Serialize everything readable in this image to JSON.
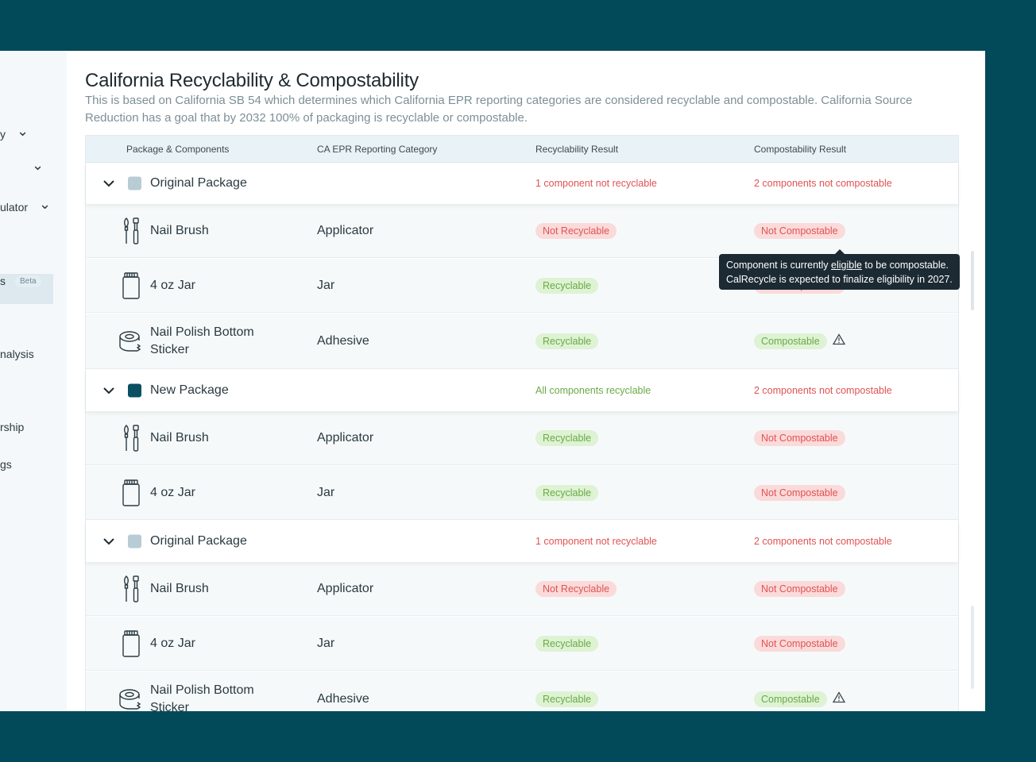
{
  "sidebar": {
    "items": [
      {
        "label": "y",
        "chevron": true
      },
      {
        "label": "",
        "chevron": true
      },
      {
        "label": "ulator",
        "chevron": true
      },
      {
        "label": "",
        "chevron": false
      },
      {
        "label": "s",
        "badge": "Beta"
      },
      {
        "label": "",
        "chevron": false
      },
      {
        "label": "nalysis"
      },
      {
        "label": "rship"
      },
      {
        "label": "gs"
      }
    ]
  },
  "page": {
    "title": "California Recyclability & Compostability",
    "description": "This is based on California SB 54 which determines which California EPR reporting categories are considered recyclable and compostable. California Source Reduction has a goal that by 2032 100% of packaging is recyclable or compostable."
  },
  "table": {
    "headers": [
      "Package & Components",
      "CA EPR Reporting Category",
      "Recyclability Result",
      "Compostability Result"
    ],
    "groups": [
      {
        "name": "Original Package",
        "swatch": "#b7ccd4",
        "recycle_summary": "1 component not recyclable",
        "compost_summary": "2 components not compostable",
        "components": [
          {
            "name": "Nail Brush",
            "category": "Applicator",
            "recyclable": "Not Recyclable",
            "compostable": "Not Compostable",
            "icon": "brush-icon"
          },
          {
            "name": "4 oz Jar",
            "category": "Jar",
            "recyclable": "Recyclable",
            "compostable": "Not Compostable",
            "icon": "jar-icon"
          },
          {
            "name": "Nail Polish Bottom Sticker",
            "category": "Adhesive",
            "recyclable": "Recyclable",
            "compostable": "Compostable",
            "icon": "tape-icon",
            "warning": true
          }
        ]
      },
      {
        "name": "New Package",
        "swatch": "#0b4f63",
        "recycle_summary": "All components recyclable",
        "compost_summary": "2 components not compostable",
        "components": [
          {
            "name": "Nail Brush",
            "category": "Applicator",
            "recyclable": "Recyclable",
            "compostable": "Not Compostable",
            "icon": "brush-icon"
          },
          {
            "name": "4 oz Jar",
            "category": "Jar",
            "recyclable": "Recyclable",
            "compostable": "Not Compostable",
            "icon": "jar-icon"
          }
        ]
      },
      {
        "name": "Original Package",
        "swatch": "#b7ccd4",
        "recycle_summary": "1 component not recyclable",
        "compost_summary": "2 components not compostable",
        "components": [
          {
            "name": "Nail Brush",
            "category": "Applicator",
            "recyclable": "Not Recyclable",
            "compostable": "Not Compostable",
            "icon": "brush-icon"
          },
          {
            "name": "4 oz Jar",
            "category": "Jar",
            "recyclable": "Recyclable",
            "compostable": "Not Compostable",
            "icon": "jar-icon"
          },
          {
            "name": "Nail Polish Bottom Sticker",
            "category": "Adhesive",
            "recyclable": "Recyclable",
            "compostable": "Compostable",
            "icon": "tape-icon",
            "warning": true
          }
        ]
      }
    ]
  },
  "tooltip": {
    "line1_before": "Component is currently ",
    "line1_link": "eligible",
    "line1_after": " to be compostable.",
    "line2": "CalRecycle is expected to finalize eligibility in 2027."
  },
  "colors": {
    "background": "#024a5a",
    "red": "#e05353",
    "green": "#6aaa44"
  }
}
